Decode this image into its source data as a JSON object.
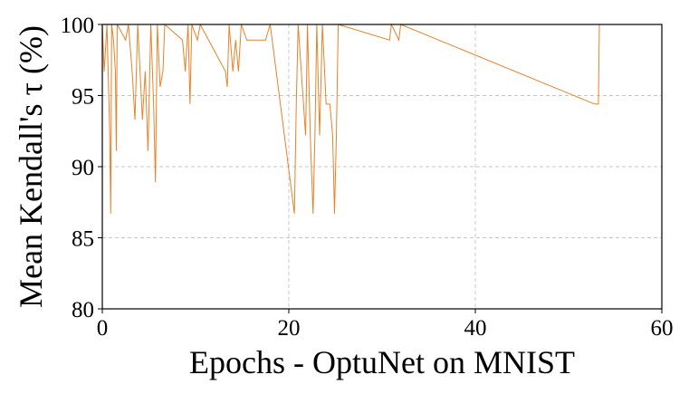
{
  "chart_data": {
    "type": "line",
    "xlabel": "Epochs - OptuNet on MNIST",
    "ylabel": "Mean Kendall's τ (%)",
    "xlim": [
      0,
      60
    ],
    "ylim": [
      80,
      100
    ],
    "xticks": [
      0,
      20,
      40,
      60
    ],
    "yticks": [
      80,
      85,
      90,
      95,
      100
    ],
    "grid": true,
    "series": [
      {
        "color": "#e8822a",
        "x": [
          0,
          0.2,
          0.5,
          0.8,
          0.9,
          1.0,
          1.2,
          1.4,
          1.5,
          1.6,
          2.5,
          2.8,
          3.2,
          3.5,
          3.8,
          4.3,
          4.6,
          4.9,
          5.2,
          5.5,
          5.7,
          5.9,
          6.2,
          6.5,
          6.7,
          8.6,
          8.9,
          9.2,
          9.4,
          9.6,
          10.2,
          10.5,
          13.2,
          13.4,
          13.6,
          14.0,
          14.3,
          14.6,
          14.9,
          15.5,
          16.5,
          17.5,
          18.0,
          20.6,
          20.8,
          21.0,
          21.8,
          22.0,
          22.3,
          22.6,
          22.8,
          23.0,
          23.3,
          23.6,
          24.0,
          24.4,
          24.7,
          24.9,
          25.1,
          25.3,
          30.8,
          31.0,
          31.8,
          32.0,
          52.8,
          53.2,
          53.3,
          60
        ],
        "values": [
          100,
          96.7,
          100,
          92.2,
          86.7,
          100,
          98.9,
          96.7,
          91.1,
          100,
          98.9,
          100,
          96.7,
          93.3,
          100,
          93.3,
          96.7,
          91.1,
          100,
          94.4,
          88.9,
          100,
          95.6,
          96.7,
          100,
          98.9,
          96.7,
          100,
          94.4,
          100,
          98.9,
          100,
          96.7,
          95.6,
          100,
          96.7,
          98.9,
          96.7,
          100,
          98.9,
          98.9,
          98.9,
          100,
          86.7,
          94.4,
          100,
          92.2,
          100,
          92.2,
          86.7,
          92.2,
          100,
          92.2,
          100,
          94.4,
          94.4,
          92.2,
          86.7,
          92.2,
          100,
          98.9,
          100,
          98.9,
          100,
          94.4,
          94.4,
          100,
          100
        ]
      }
    ]
  }
}
